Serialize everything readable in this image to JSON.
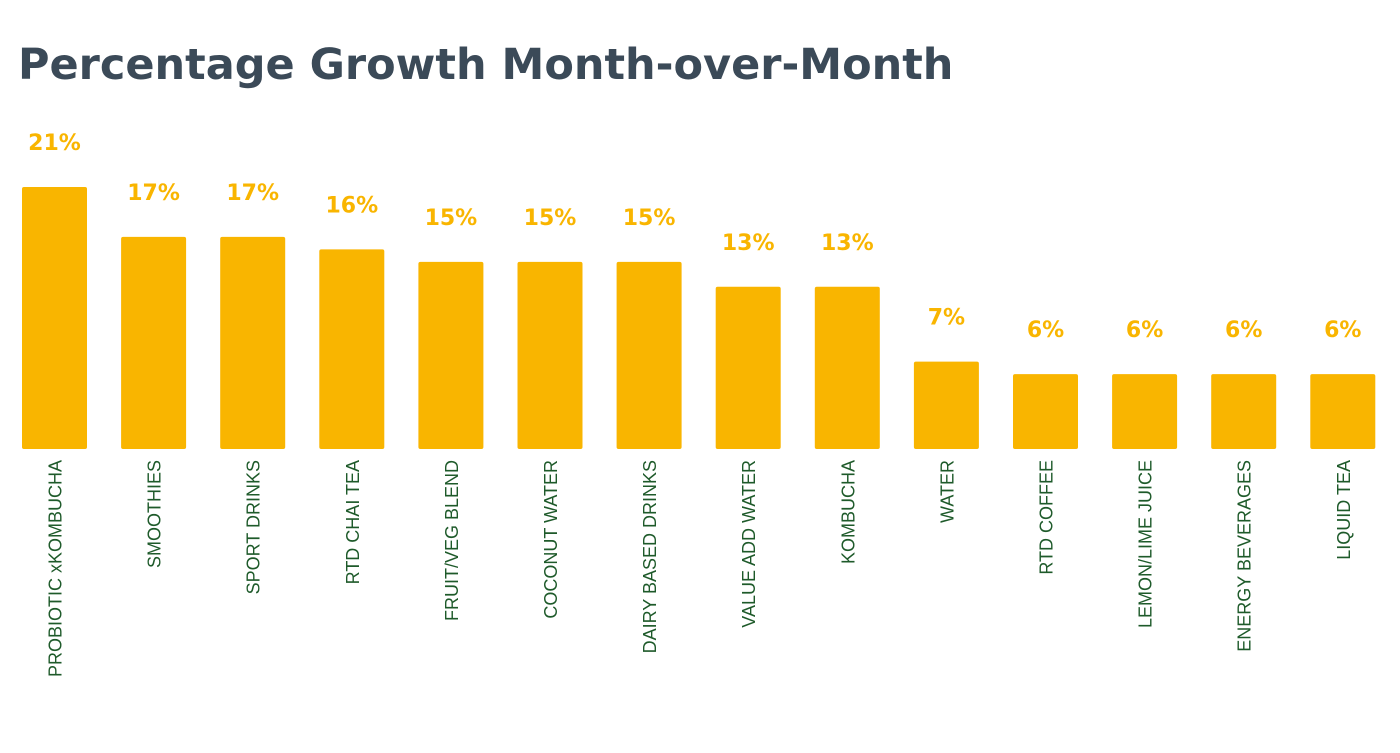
{
  "title": "Percentage Growth Month-over-Month",
  "chart_data": {
    "type": "bar",
    "title": "Percentage Growth Month-over-Month",
    "xlabel": "",
    "ylabel": "",
    "ylim": [
      0,
      21
    ],
    "grid": false,
    "value_suffix": "%",
    "categories": [
      "PROBIOTIC xKOMBUCHA",
      "SMOOTHIES",
      "SPORT DRINKS",
      "RTD CHAI TEA",
      "FRUIT/VEG BLEND",
      "COCONUT WATER",
      "DAIRY BASED DRINKS",
      "VALUE ADD WATER",
      "KOMBUCHA",
      "WATER",
      "RTD COFFEE",
      "LEMON/LIME JUICE",
      "ENERGY BEVERAGES",
      "LIQUID TEA"
    ],
    "values": [
      21,
      17,
      17,
      16,
      15,
      15,
      15,
      13,
      13,
      7,
      6,
      6,
      6,
      6
    ],
    "data_labels": [
      "21%",
      "17%",
      "17%",
      "16%",
      "15%",
      "15%",
      "15%",
      "13%",
      "13%",
      "7%",
      "6%",
      "6%",
      "6%",
      "6%"
    ],
    "colors": {
      "bar": "#F9B500",
      "data_label": "#F9B500",
      "category_label": "#1E5A2A",
      "title": "#3B4A58"
    }
  }
}
